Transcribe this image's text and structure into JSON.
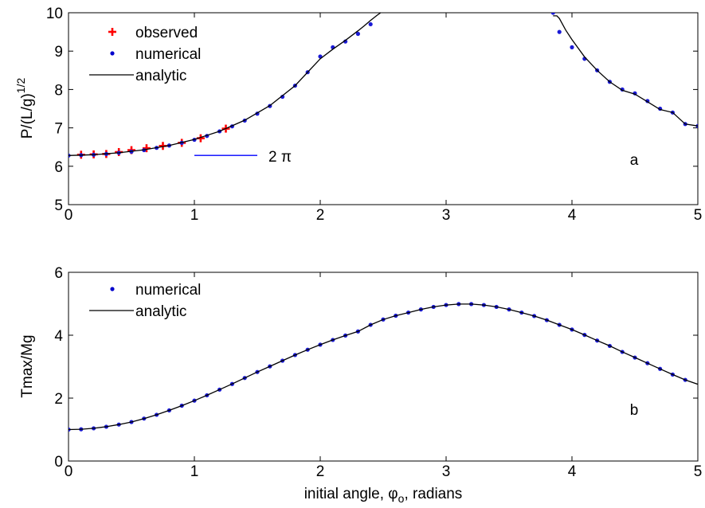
{
  "chart_data": [
    {
      "type": "line",
      "panel_letter": "a",
      "ylabel": "P/(L/g)",
      "ylabel_superscript": "1/2",
      "xlim": [
        0,
        5
      ],
      "ylim": [
        5,
        10
      ],
      "xticks": [
        "0",
        "1",
        "2",
        "3",
        "4",
        "5"
      ],
      "yticks": [
        "5",
        "6",
        "7",
        "8",
        "9",
        "10"
      ],
      "legend": [
        {
          "label": "observed",
          "marker": "plus",
          "color": "#ff0000"
        },
        {
          "label": "numerical",
          "marker": "dot",
          "color": "#0000cc"
        },
        {
          "label": "analytic",
          "marker": "line",
          "color": "#000000"
        }
      ],
      "reference_line": {
        "label": "2 π",
        "x": [
          1.0,
          1.5
        ],
        "y": 6.283,
        "color": "#0000ff"
      },
      "series": [
        {
          "name": "observed",
          "kind": "plus",
          "color": "#ff0000",
          "x": [
            0.1,
            0.2,
            0.3,
            0.4,
            0.5,
            0.62,
            0.75,
            0.9,
            1.05,
            1.25
          ],
          "y": [
            6.3,
            6.31,
            6.32,
            6.37,
            6.42,
            6.47,
            6.53,
            6.61,
            6.73,
            6.98
          ]
        },
        {
          "name": "numerical",
          "kind": "dot",
          "color": "#1a1ad6",
          "x": [
            0.0,
            0.1,
            0.2,
            0.3,
            0.4,
            0.5,
            0.6,
            0.7,
            0.8,
            0.9,
            1.0,
            1.1,
            1.2,
            1.3,
            1.4,
            1.5,
            1.6,
            1.7,
            1.8,
            1.9,
            2.0,
            2.1,
            2.2,
            2.3,
            2.4,
            3.85,
            3.9,
            4.0,
            4.1,
            4.2,
            4.3,
            4.4,
            4.5,
            4.6,
            4.7,
            4.8,
            4.9,
            5.0
          ],
          "y": [
            6.28,
            6.29,
            6.3,
            6.32,
            6.35,
            6.38,
            6.42,
            6.48,
            6.54,
            6.61,
            6.69,
            6.79,
            6.91,
            7.04,
            7.19,
            7.37,
            7.57,
            7.81,
            8.1,
            8.45,
            8.86,
            9.1,
            9.25,
            9.45,
            9.7,
            10.0,
            9.5,
            9.1,
            8.8,
            8.5,
            8.2,
            8.0,
            7.9,
            7.7,
            7.5,
            7.4,
            7.1,
            7.05
          ]
        },
        {
          "name": "analytic",
          "kind": "line",
          "color": "#000000",
          "segments": [
            {
              "x": [
                0.0,
                0.2,
                0.4,
                0.6,
                0.8,
                1.0,
                1.2,
                1.4,
                1.6,
                1.8,
                2.0,
                2.1,
                2.2,
                2.3,
                2.35,
                2.4,
                2.45,
                2.48
              ],
              "y": [
                6.28,
                6.3,
                6.35,
                6.43,
                6.54,
                6.7,
                6.91,
                7.2,
                7.58,
                8.1,
                8.8,
                9.05,
                9.28,
                9.53,
                9.66,
                9.8,
                9.93,
                10.0
              ]
            },
            {
              "x": [
                3.85,
                3.88,
                3.9,
                3.95,
                4.0,
                4.1,
                4.2,
                4.3,
                4.4,
                4.5,
                4.6,
                4.7,
                4.8,
                4.9,
                5.0
              ],
              "y": [
                9.92,
                9.92,
                9.85,
                9.55,
                9.3,
                8.85,
                8.5,
                8.2,
                7.98,
                7.88,
                7.68,
                7.48,
                7.4,
                7.1,
                7.05
              ]
            }
          ]
        }
      ]
    },
    {
      "type": "line",
      "panel_letter": "b",
      "ylabel": "Tmax/Mg",
      "xlabel": "initial angle, φ",
      "xlabel_subscript": "o",
      "xlabel_suffix": ", radians",
      "xlim": [
        0,
        5
      ],
      "ylim": [
        0,
        6
      ],
      "xticks": [
        "0",
        "1",
        "2",
        "3",
        "4",
        "5"
      ],
      "yticks": [
        "0",
        "2",
        "4",
        "6"
      ],
      "legend": [
        {
          "label": "numerical",
          "marker": "dot",
          "color": "#0000cc"
        },
        {
          "label": "analytic",
          "marker": "line",
          "color": "#000000"
        }
      ],
      "series": [
        {
          "name": "numerical",
          "kind": "dot",
          "color": "#1a1ad6",
          "x": [
            0.0,
            0.1,
            0.2,
            0.3,
            0.4,
            0.5,
            0.6,
            0.7,
            0.8,
            0.9,
            1.0,
            1.1,
            1.2,
            1.3,
            1.4,
            1.5,
            1.6,
            1.7,
            1.8,
            1.9,
            2.0,
            2.1,
            2.2,
            2.3,
            2.4,
            2.5,
            2.6,
            2.7,
            2.8,
            2.9,
            3.0,
            3.1,
            3.2,
            3.3,
            3.4,
            3.5,
            3.6,
            3.7,
            3.8,
            3.9,
            4.0,
            4.1,
            4.2,
            4.3,
            4.4,
            4.5,
            4.6,
            4.7,
            4.8,
            4.9
          ],
          "y": [
            1.0,
            1.01,
            1.04,
            1.09,
            1.16,
            1.24,
            1.35,
            1.47,
            1.61,
            1.76,
            1.92,
            2.09,
            2.27,
            2.45,
            2.64,
            2.83,
            3.01,
            3.19,
            3.37,
            3.54,
            3.7,
            3.85,
            3.99,
            4.12,
            4.33,
            4.5,
            4.62,
            4.72,
            4.82,
            4.9,
            4.96,
            4.99,
            4.99,
            4.96,
            4.9,
            4.82,
            4.72,
            4.61,
            4.48,
            4.33,
            4.18,
            4.01,
            3.83,
            3.66,
            3.47,
            3.29,
            3.11,
            2.93,
            2.75,
            2.58
          ]
        },
        {
          "name": "analytic",
          "kind": "line",
          "color": "#000000",
          "segments": [
            {
              "x": [
                0.0,
                0.1,
                0.2,
                0.3,
                0.4,
                0.5,
                0.6,
                0.7,
                0.8,
                0.9,
                1.0,
                1.1,
                1.2,
                1.3,
                1.4,
                1.5,
                1.6,
                1.7,
                1.8,
                1.9,
                2.0,
                2.1,
                2.2,
                2.3,
                2.4,
                2.5,
                2.6,
                2.7,
                2.8,
                2.9,
                3.0,
                3.1,
                3.2,
                3.3,
                3.4,
                3.5,
                3.6,
                3.7,
                3.8,
                3.9,
                4.0,
                4.1,
                4.2,
                4.3,
                4.4,
                4.5,
                4.6,
                4.7,
                4.8,
                4.9,
                5.0
              ],
              "y": [
                1.0,
                1.01,
                1.04,
                1.09,
                1.16,
                1.24,
                1.35,
                1.47,
                1.61,
                1.76,
                1.92,
                2.09,
                2.27,
                2.45,
                2.64,
                2.83,
                3.01,
                3.19,
                3.37,
                3.54,
                3.7,
                3.85,
                3.99,
                4.12,
                4.33,
                4.5,
                4.62,
                4.72,
                4.82,
                4.9,
                4.96,
                4.99,
                4.99,
                4.96,
                4.9,
                4.82,
                4.72,
                4.61,
                4.48,
                4.33,
                4.18,
                4.01,
                3.83,
                3.66,
                3.47,
                3.29,
                3.11,
                2.93,
                2.75,
                2.58,
                2.44
              ]
            }
          ]
        }
      ]
    }
  ]
}
